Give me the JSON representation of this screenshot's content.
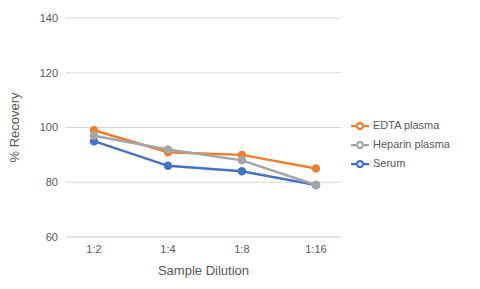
{
  "chart_data": {
    "type": "line",
    "x_label": "Sample Dilution",
    "y_label": "% Recovery",
    "categories": [
      "1:2",
      "1:4",
      "1:8",
      "1:16"
    ],
    "series": [
      {
        "name": "Serum",
        "color": "#4472c4",
        "values": [
          95,
          86,
          84,
          79
        ]
      },
      {
        "name": "EDTA plasma",
        "color": "#ed7d31",
        "values": [
          99,
          91,
          90,
          85
        ]
      },
      {
        "name": "Heparin plasma",
        "color": "#a5a5a5",
        "values": [
          97,
          92,
          88,
          79
        ]
      }
    ],
    "ylim": [
      60,
      140
    ],
    "yticks": [
      60,
      80,
      100,
      120,
      140
    ],
    "grid": true,
    "legend": "right",
    "marker": "circle"
  }
}
